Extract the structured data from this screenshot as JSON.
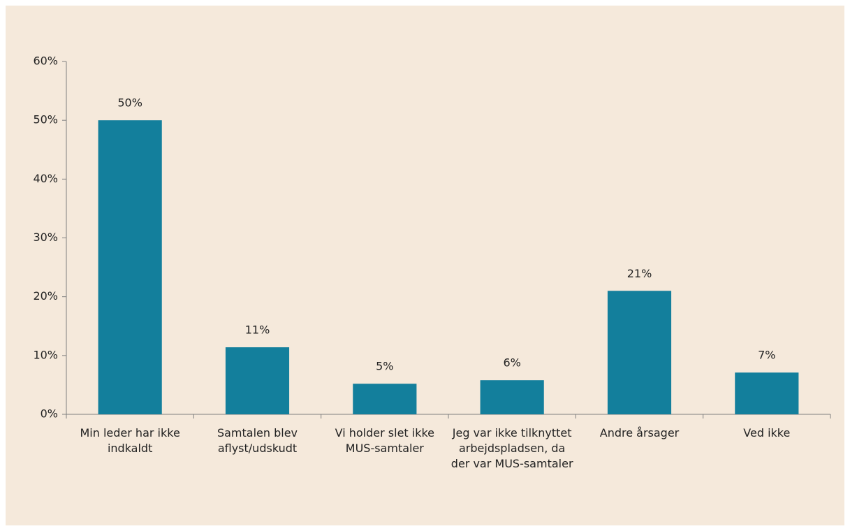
{
  "chart_data": {
    "type": "bar",
    "categories": [
      "Min leder har ikke indkaldt",
      "Samtalen blev aflyst/udskudt",
      "Vi holder slet ikke MUS-samtaler",
      "Jeg var ikke tilknyttet arbejdspladsen, da der var MUS-samtaler",
      "Andre årsager",
      "Ved ikke"
    ],
    "values": [
      50,
      11.4,
      5.2,
      5.8,
      21,
      7.1
    ],
    "value_labels": [
      "50%",
      "11%",
      "5%",
      "6%",
      "21%",
      "7%"
    ],
    "color": "#137f9c",
    "ylim": [
      0,
      60
    ],
    "yticks": [
      {
        "value": 0,
        "label": "0%"
      },
      {
        "value": 10,
        "label": "10%"
      },
      {
        "value": 20,
        "label": "20%"
      },
      {
        "value": 30,
        "label": "30%"
      },
      {
        "value": 40,
        "label": "40%"
      },
      {
        "value": 50,
        "label": "50%"
      },
      {
        "value": 60,
        "label": "60%"
      }
    ],
    "grid": false
  }
}
